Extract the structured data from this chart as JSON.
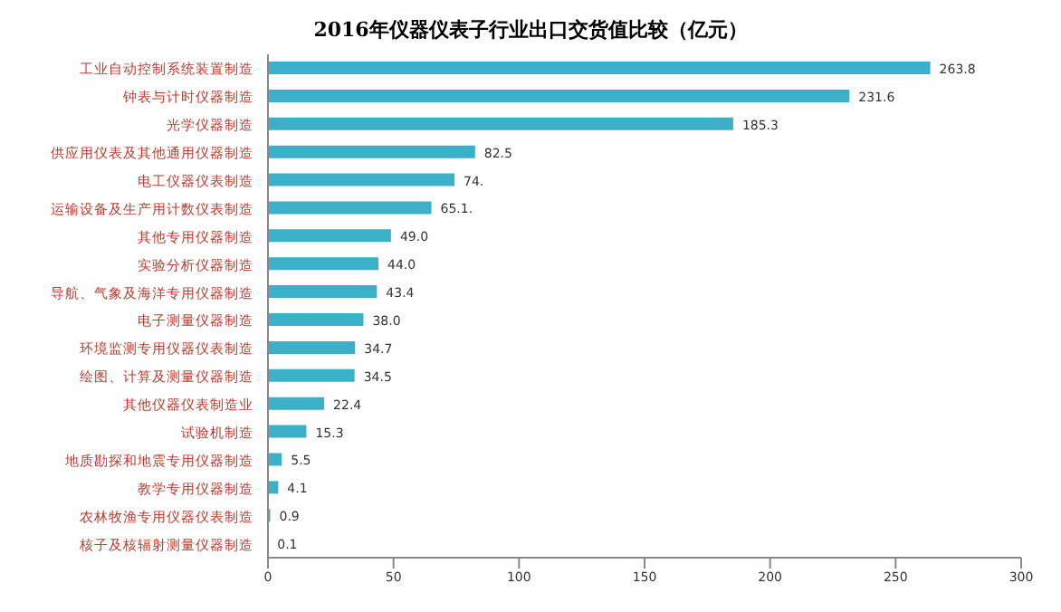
{
  "chart_data": {
    "type": "bar",
    "orientation": "horizontal",
    "title": "2016年仪器仪表子行业出口交货值比较（亿元）",
    "categories": [
      "工业自动控制系统装置制造",
      "钟表与计时仪器制造",
      "光学仪器制造",
      "供应用仪表及其他通用仪器制造",
      "电工仪器仪表制造",
      "运输设备及生产用计数仪表制造",
      "其他专用仪器制造",
      "实验分析仪器制造",
      "导航、气象及海洋专用仪器制造",
      "电子测量仪器制造",
      "环境监测专用仪器仪表制造",
      "绘图、计算及测量仪器制造",
      "其他仪器仪表制造业",
      "试验机制造",
      "地质勘探和地震专用仪器制造",
      "教学专用仪器制造",
      "农林牧渔专用仪器仪表制造",
      "核子及核辐射测量仪器制造"
    ],
    "values": [
      263.8,
      231.6,
      185.3,
      82.5,
      74.3,
      65.1,
      49.0,
      44.0,
      43.4,
      38.0,
      34.7,
      34.5,
      22.4,
      15.3,
      5.5,
      4.1,
      0.9,
      0.1
    ],
    "value_labels": [
      "263.8",
      "231.6",
      "185.3",
      "82.5",
      "74.",
      "65.1.",
      "49.0",
      "44.0",
      "43.4",
      "38.0",
      "34.7",
      "34.5",
      "22.4",
      "15.3",
      "5.5",
      "4.1",
      "0.9",
      "0.1"
    ],
    "color": "#3cb0c8",
    "xlim": [
      0,
      300
    ],
    "xticks": [
      0,
      50,
      100,
      150,
      200,
      250,
      300
    ],
    "grid": false
  }
}
